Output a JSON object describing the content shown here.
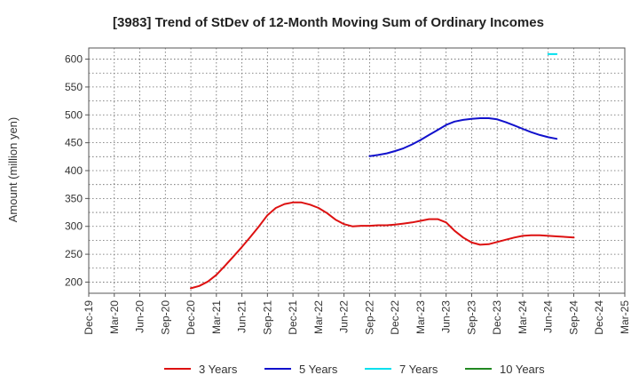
{
  "chart_data": {
    "type": "line",
    "title": "[3983]  Trend of StDev of 12-Month Moving Sum of Ordinary Incomes",
    "ylabel": "Amount (million yen)",
    "xlabel": "",
    "ylim": [
      180,
      620
    ],
    "yticks": [
      200,
      250,
      300,
      350,
      400,
      450,
      500,
      550,
      600
    ],
    "x_categories": [
      "Dec-19",
      "Mar-20",
      "Jun-20",
      "Sep-20",
      "Dec-20",
      "Mar-21",
      "Jun-21",
      "Sep-21",
      "Dec-21",
      "Mar-22",
      "Jun-22",
      "Sep-22",
      "Dec-22",
      "Mar-23",
      "Jun-23",
      "Sep-23",
      "Dec-23",
      "Mar-24",
      "Jun-24",
      "Sep-24",
      "Dec-24",
      "Mar-25"
    ],
    "grid": true,
    "legend_position": "bottom",
    "series": [
      {
        "name": "3 Years",
        "color": "#dd1111",
        "points": [
          [
            4.0,
            189
          ],
          [
            4.33,
            193
          ],
          [
            4.67,
            201
          ],
          [
            5.0,
            213
          ],
          [
            5.33,
            229
          ],
          [
            5.67,
            246
          ],
          [
            6.0,
            263
          ],
          [
            6.33,
            281
          ],
          [
            6.67,
            300
          ],
          [
            7.0,
            320
          ],
          [
            7.33,
            333
          ],
          [
            7.67,
            340
          ],
          [
            8.0,
            343
          ],
          [
            8.33,
            343
          ],
          [
            8.67,
            339
          ],
          [
            9.0,
            333
          ],
          [
            9.33,
            324
          ],
          [
            9.67,
            312
          ],
          [
            10.0,
            304
          ],
          [
            10.33,
            300
          ],
          [
            10.67,
            301
          ],
          [
            11.0,
            301
          ],
          [
            11.33,
            302
          ],
          [
            11.67,
            302
          ],
          [
            12.0,
            303
          ],
          [
            12.33,
            305
          ],
          [
            12.67,
            307
          ],
          [
            13.0,
            310
          ],
          [
            13.33,
            313
          ],
          [
            13.67,
            313
          ],
          [
            14.0,
            307
          ],
          [
            14.33,
            292
          ],
          [
            14.67,
            280
          ],
          [
            15.0,
            271
          ],
          [
            15.33,
            267
          ],
          [
            15.67,
            268
          ],
          [
            16.0,
            272
          ],
          [
            16.33,
            276
          ],
          [
            16.67,
            280
          ],
          [
            17.0,
            283
          ],
          [
            17.33,
            284
          ],
          [
            17.67,
            284
          ],
          [
            18.0,
            283
          ],
          [
            18.33,
            282
          ],
          [
            18.67,
            281
          ],
          [
            19.0,
            280
          ]
        ]
      },
      {
        "name": "5 Years",
        "color": "#1111cc",
        "points": [
          [
            11.0,
            426
          ],
          [
            11.33,
            428
          ],
          [
            11.67,
            431
          ],
          [
            12.0,
            435
          ],
          [
            12.33,
            440
          ],
          [
            12.67,
            447
          ],
          [
            13.0,
            455
          ],
          [
            13.33,
            464
          ],
          [
            13.67,
            473
          ],
          [
            14.0,
            482
          ],
          [
            14.33,
            488
          ],
          [
            14.67,
            491
          ],
          [
            15.0,
            493
          ],
          [
            15.33,
            494
          ],
          [
            15.67,
            494
          ],
          [
            16.0,
            492
          ],
          [
            16.33,
            487
          ],
          [
            16.67,
            481
          ],
          [
            17.0,
            475
          ],
          [
            17.33,
            469
          ],
          [
            17.67,
            464
          ],
          [
            18.0,
            460
          ],
          [
            18.33,
            457
          ]
        ]
      },
      {
        "name": "7 Years",
        "color": "#00e0ee",
        "points": [
          [
            18.0,
            609
          ],
          [
            18.33,
            609
          ]
        ]
      },
      {
        "name": "10 Years",
        "color": "#228822",
        "points": []
      }
    ]
  }
}
